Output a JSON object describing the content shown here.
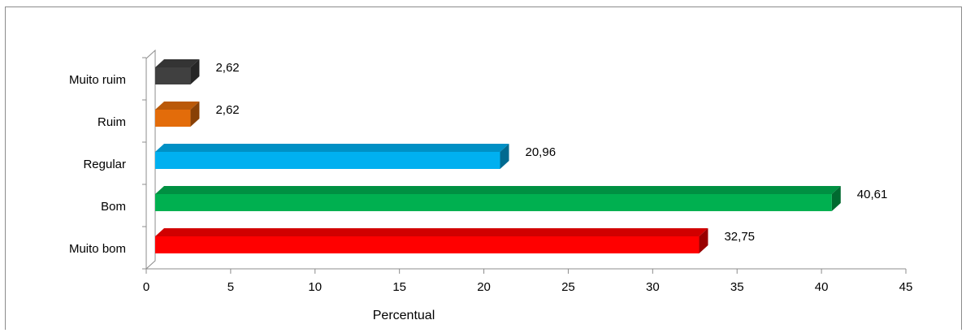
{
  "chart_data": {
    "type": "bar",
    "orientation": "horizontal",
    "three_d": true,
    "categories": [
      "Muito bom",
      "Bom",
      "Regular",
      "Ruim",
      "Muito ruim"
    ],
    "values": [
      32.75,
      40.61,
      20.96,
      2.62,
      2.62
    ],
    "value_labels": [
      "32,75",
      "40,61",
      "20,96",
      "2,62",
      "2,62"
    ],
    "colors": [
      "#ff0000",
      "#00b050",
      "#00b0f0",
      "#e36c0a",
      "#404040"
    ],
    "xlabel": "Percentual",
    "xlim": [
      0,
      45
    ],
    "xticks": [
      0,
      5,
      10,
      15,
      20,
      25,
      30,
      35,
      40,
      45
    ],
    "grid": false,
    "legend": "none"
  }
}
